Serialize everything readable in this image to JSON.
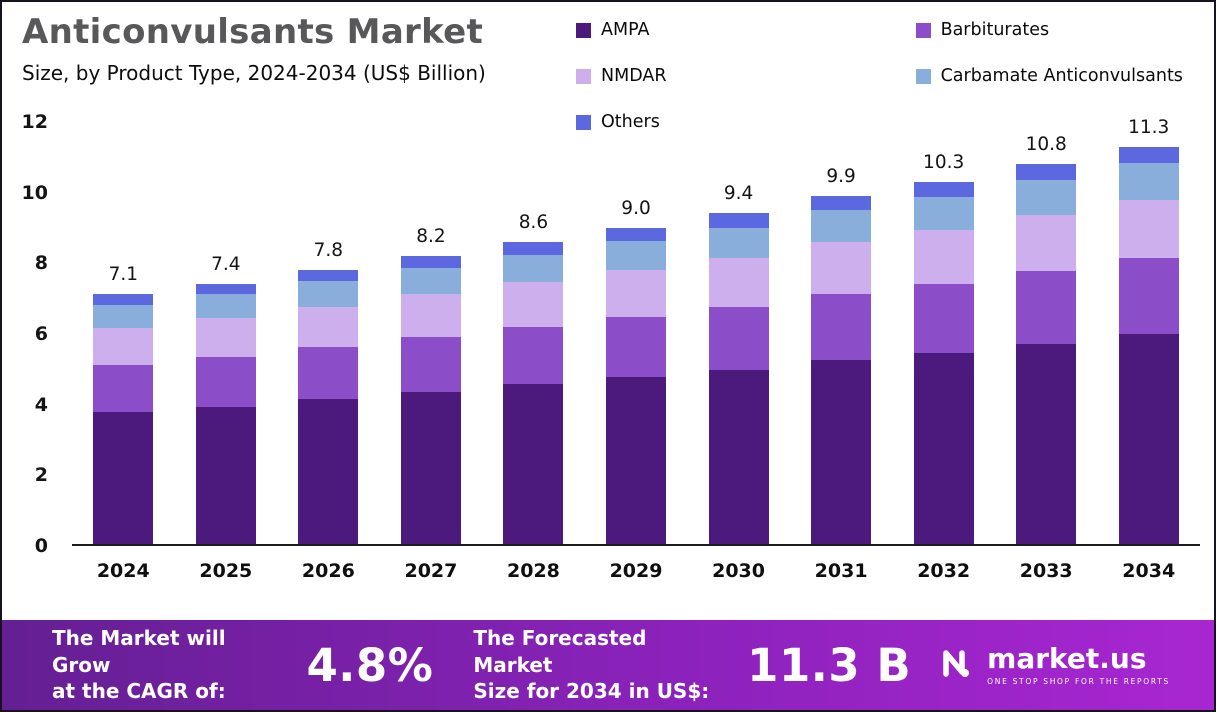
{
  "header": {
    "title": "Anticonvulsants Market",
    "subtitle": "Size, by Product Type, 2024-2034 (US$ Billion)"
  },
  "colors": {
    "ampa": "#4c1a7d",
    "barbiturates": "#8b4dc8",
    "nmdar": "#ccafec",
    "carbamate": "#89aedb",
    "others": "#5b68e0",
    "banner_gradient_left": "#641f93",
    "banner_gradient_right": "#a826d1",
    "title_gray": "#58585a"
  },
  "legend": {
    "items": [
      {
        "label": "AMPA",
        "color": "#4c1a7d"
      },
      {
        "label": "NMDAR",
        "color": "#ccafec"
      },
      {
        "label": "Others",
        "color": "#5b68e0"
      },
      {
        "label": "Barbiturates",
        "color": "#8b4dc8"
      },
      {
        "label": "Carbamate Anticonvulsants",
        "color": "#89aedb"
      }
    ]
  },
  "chart_data": {
    "type": "bar",
    "stacked": true,
    "title": "Anticonvulsants Market Size, by Product Type, 2024-2034 (US$ Billion)",
    "xlabel": "",
    "ylabel": "",
    "ylim": [
      0,
      12
    ],
    "yticks": [
      0,
      2,
      4,
      6,
      8,
      10,
      12
    ],
    "grid": false,
    "legend_position": "top-right",
    "categories": [
      "2024",
      "2025",
      "2026",
      "2027",
      "2028",
      "2029",
      "2030",
      "2031",
      "2032",
      "2033",
      "2034"
    ],
    "totals": [
      "7.1",
      "7.4",
      "7.8",
      "8.2",
      "8.6",
      "9.0",
      "9.4",
      "9.9",
      "10.3",
      "10.8",
      "11.3"
    ],
    "series": [
      {
        "name": "AMPA",
        "color": "#4c1a7d",
        "values": [
          3.75,
          3.91,
          4.12,
          4.33,
          4.54,
          4.75,
          4.96,
          5.23,
          5.44,
          5.7,
          5.97
        ]
      },
      {
        "name": "Barbiturates",
        "color": "#8b4dc8",
        "values": [
          1.35,
          1.41,
          1.48,
          1.56,
          1.63,
          1.71,
          1.79,
          1.88,
          1.96,
          2.05,
          2.15
        ]
      },
      {
        "name": "NMDAR",
        "color": "#ccafec",
        "values": [
          1.05,
          1.1,
          1.15,
          1.21,
          1.27,
          1.33,
          1.39,
          1.47,
          1.52,
          1.6,
          1.67
        ]
      },
      {
        "name": "Carbamate Anticonvulsants",
        "color": "#89aedb",
        "values": [
          0.65,
          0.68,
          0.72,
          0.75,
          0.79,
          0.83,
          0.86,
          0.91,
          0.95,
          0.99,
          1.04
        ]
      },
      {
        "name": "Others",
        "color": "#5b68e0",
        "values": [
          0.3,
          0.3,
          0.33,
          0.35,
          0.37,
          0.38,
          0.4,
          0.41,
          0.43,
          0.46,
          0.47
        ]
      }
    ]
  },
  "footer": {
    "cagr_label": "The Market will Grow\nat the CAGR of:",
    "cagr_value": "4.8%",
    "forecast_label": "The Forecasted Market\nSize for 2034 in US$:",
    "forecast_value": "11.3 B",
    "brand": "market.us",
    "brand_tagline": "ONE STOP SHOP FOR THE REPORTS"
  }
}
